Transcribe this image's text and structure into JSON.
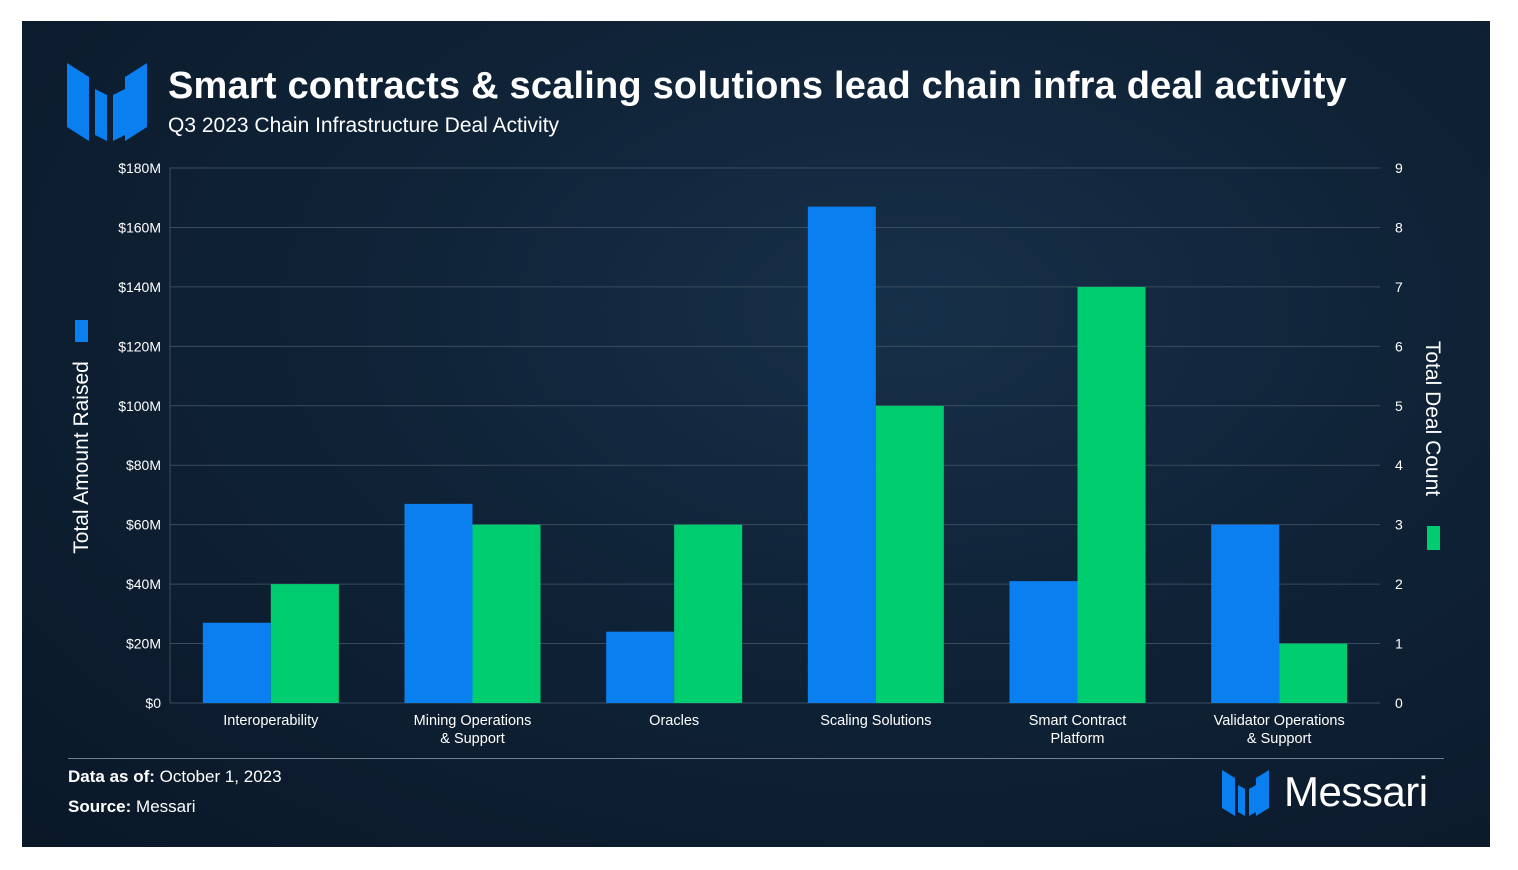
{
  "title": "Smart contracts & scaling solutions lead chain infra deal activity",
  "subtitle": "Q3 2023 Chain Infrastructure Deal Activity",
  "footer": {
    "data_as_of_label": "Data as of:",
    "data_as_of_value": "October 1, 2023",
    "source_label": "Source:",
    "source_value": "Messari"
  },
  "brand": {
    "name": "Messari"
  },
  "colors": {
    "amount": "#0a7ff0",
    "count": "#00cc70",
    "grid": "#3a4c5e"
  },
  "chart_data": {
    "type": "bar",
    "categories": [
      [
        "Interoperability"
      ],
      [
        "Mining Operations",
        "& Support"
      ],
      [
        "Oracles"
      ],
      [
        "Scaling Solutions"
      ],
      [
        "Smart Contract",
        "Platform"
      ],
      [
        "Validator Operations",
        "& Support"
      ]
    ],
    "series": [
      {
        "axis": "left",
        "color": "#0a7ff0",
        "values": [
          27,
          67,
          24,
          167,
          41,
          60
        ]
      },
      {
        "axis": "right",
        "color": "#00cc70",
        "values": [
          2,
          3,
          3,
          5,
          7,
          1
        ]
      }
    ],
    "ylabel": "Total Amount Raised",
    "y2label": "Total Deal Count",
    "ylim": [
      0,
      180
    ],
    "y2lim": [
      0,
      9
    ],
    "yticks": [
      "$0",
      "$20M",
      "$40M",
      "$60M",
      "$80M",
      "$100M",
      "$120M",
      "$140M",
      "$160M",
      "$180M"
    ],
    "y2ticks": [
      "0",
      "1",
      "2",
      "3",
      "4",
      "5",
      "6",
      "7",
      "8",
      "9"
    ],
    "grid": true
  }
}
